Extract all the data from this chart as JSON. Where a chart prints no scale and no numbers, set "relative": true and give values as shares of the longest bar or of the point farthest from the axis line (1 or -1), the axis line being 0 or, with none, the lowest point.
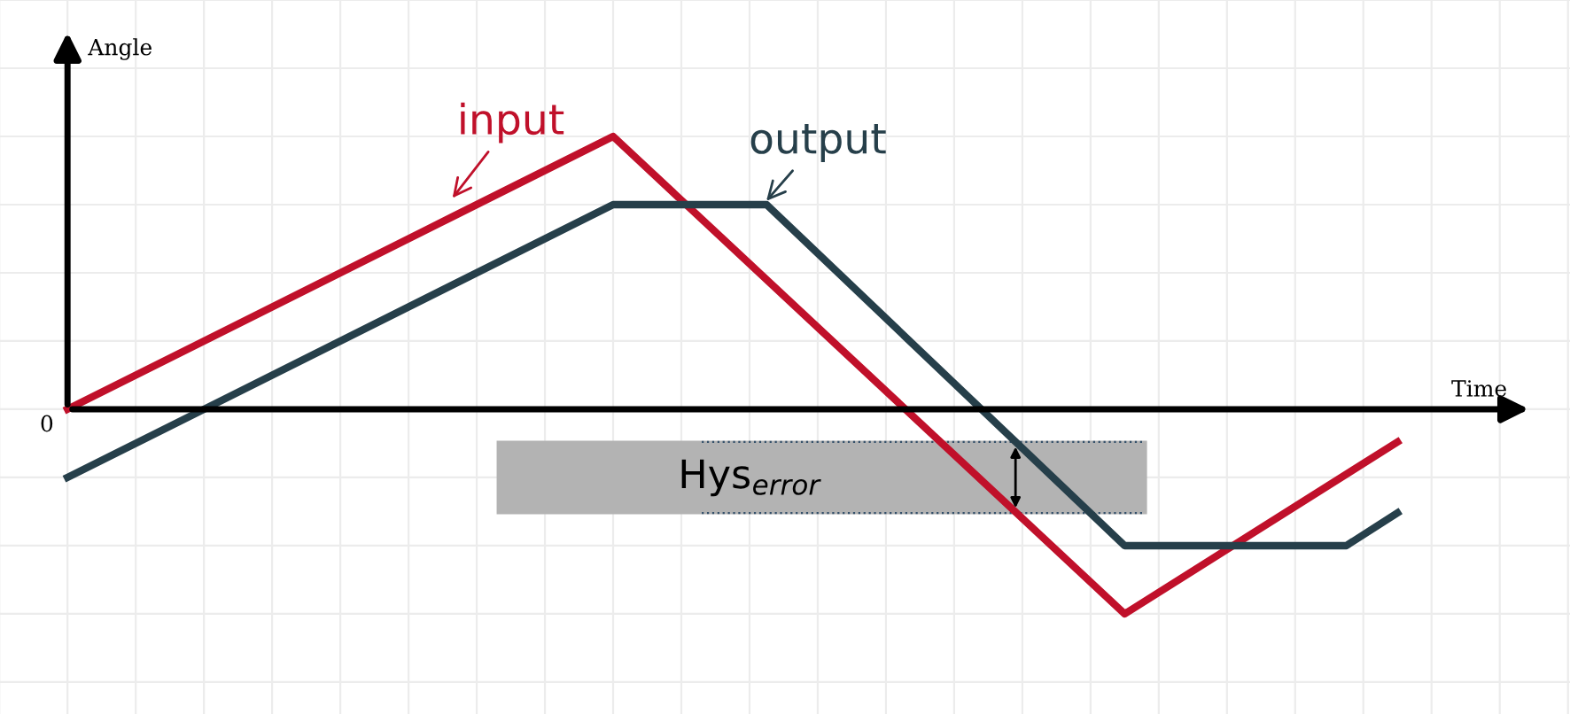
{
  "chart_data": {
    "type": "line",
    "relative": true,
    "xlabel": "Time",
    "ylabel": "Angle",
    "grid": true,
    "marker": "none",
    "line_style": "solid",
    "categories": [
      null,
      null,
      null,
      null,
      null,
      null,
      null,
      null,
      null,
      null,
      null,
      null,
      null,
      null,
      null,
      null,
      null,
      null,
      null,
      null,
      null,
      null,
      null,
      null,
      null,
      null,
      null,
      null,
      null,
      null,
      null,
      null,
      null,
      null,
      null,
      null,
      null,
      null,
      null,
      null,
      null,
      null,
      null,
      null,
      null,
      null,
      null,
      null,
      null,
      null,
      null,
      null,
      null,
      null,
      null,
      null,
      null,
      null,
      null,
      null,
      null,
      null,
      null,
      null,
      null,
      null,
      null,
      null,
      null,
      null,
      null,
      null,
      null,
      null,
      null,
      null,
      null,
      null,
      null
    ],
    "series": [
      {
        "name": "input",
        "color": "#c0102a",
        "values": [
          0,
          null,
          null,
          null,
          null,
          null,
          null,
          null,
          null,
          null,
          null,
          null,
          null,
          null,
          null,
          null,
          null,
          null,
          null,
          null,
          null,
          null,
          null,
          null,
          null,
          null,
          null,
          null,
          null,
          null,
          null,
          null,
          1,
          null,
          null,
          null,
          null,
          null,
          null,
          null,
          null,
          null,
          null,
          null,
          null,
          null,
          null,
          null,
          null,
          null,
          null,
          null,
          null,
          null,
          null,
          null,
          null,
          null,
          null,
          null,
          null,
          null,
          -0.75,
          null,
          null,
          null,
          null,
          null,
          null,
          null,
          null,
          null,
          null,
          null,
          null,
          null,
          null,
          null,
          -0.12
        ]
      },
      {
        "name": "output",
        "color": "#263f4a",
        "values": [
          -0.25,
          null,
          null,
          null,
          null,
          null,
          null,
          null,
          null,
          null,
          null,
          null,
          null,
          null,
          null,
          null,
          null,
          null,
          null,
          null,
          null,
          null,
          null,
          null,
          null,
          null,
          null,
          null,
          null,
          null,
          null,
          null,
          0.75,
          null,
          null,
          null,
          null,
          null,
          null,
          null,
          null,
          0.75,
          null,
          null,
          null,
          null,
          null,
          null,
          null,
          null,
          null,
          null,
          null,
          null,
          null,
          null,
          null,
          null,
          null,
          null,
          null,
          null,
          -0.5,
          null,
          null,
          null,
          null,
          null,
          null,
          null,
          null,
          null,
          null,
          null,
          null,
          -0.5,
          null,
          null,
          -0.38
        ]
      }
    ],
    "bands": [
      {
        "axis": "y",
        "from": -0.38,
        "to": -0.12,
        "label": "Hys$_{error}$",
        "color": "#b3b3b3"
      }
    ],
    "annotations": [
      "0"
    ]
  }
}
